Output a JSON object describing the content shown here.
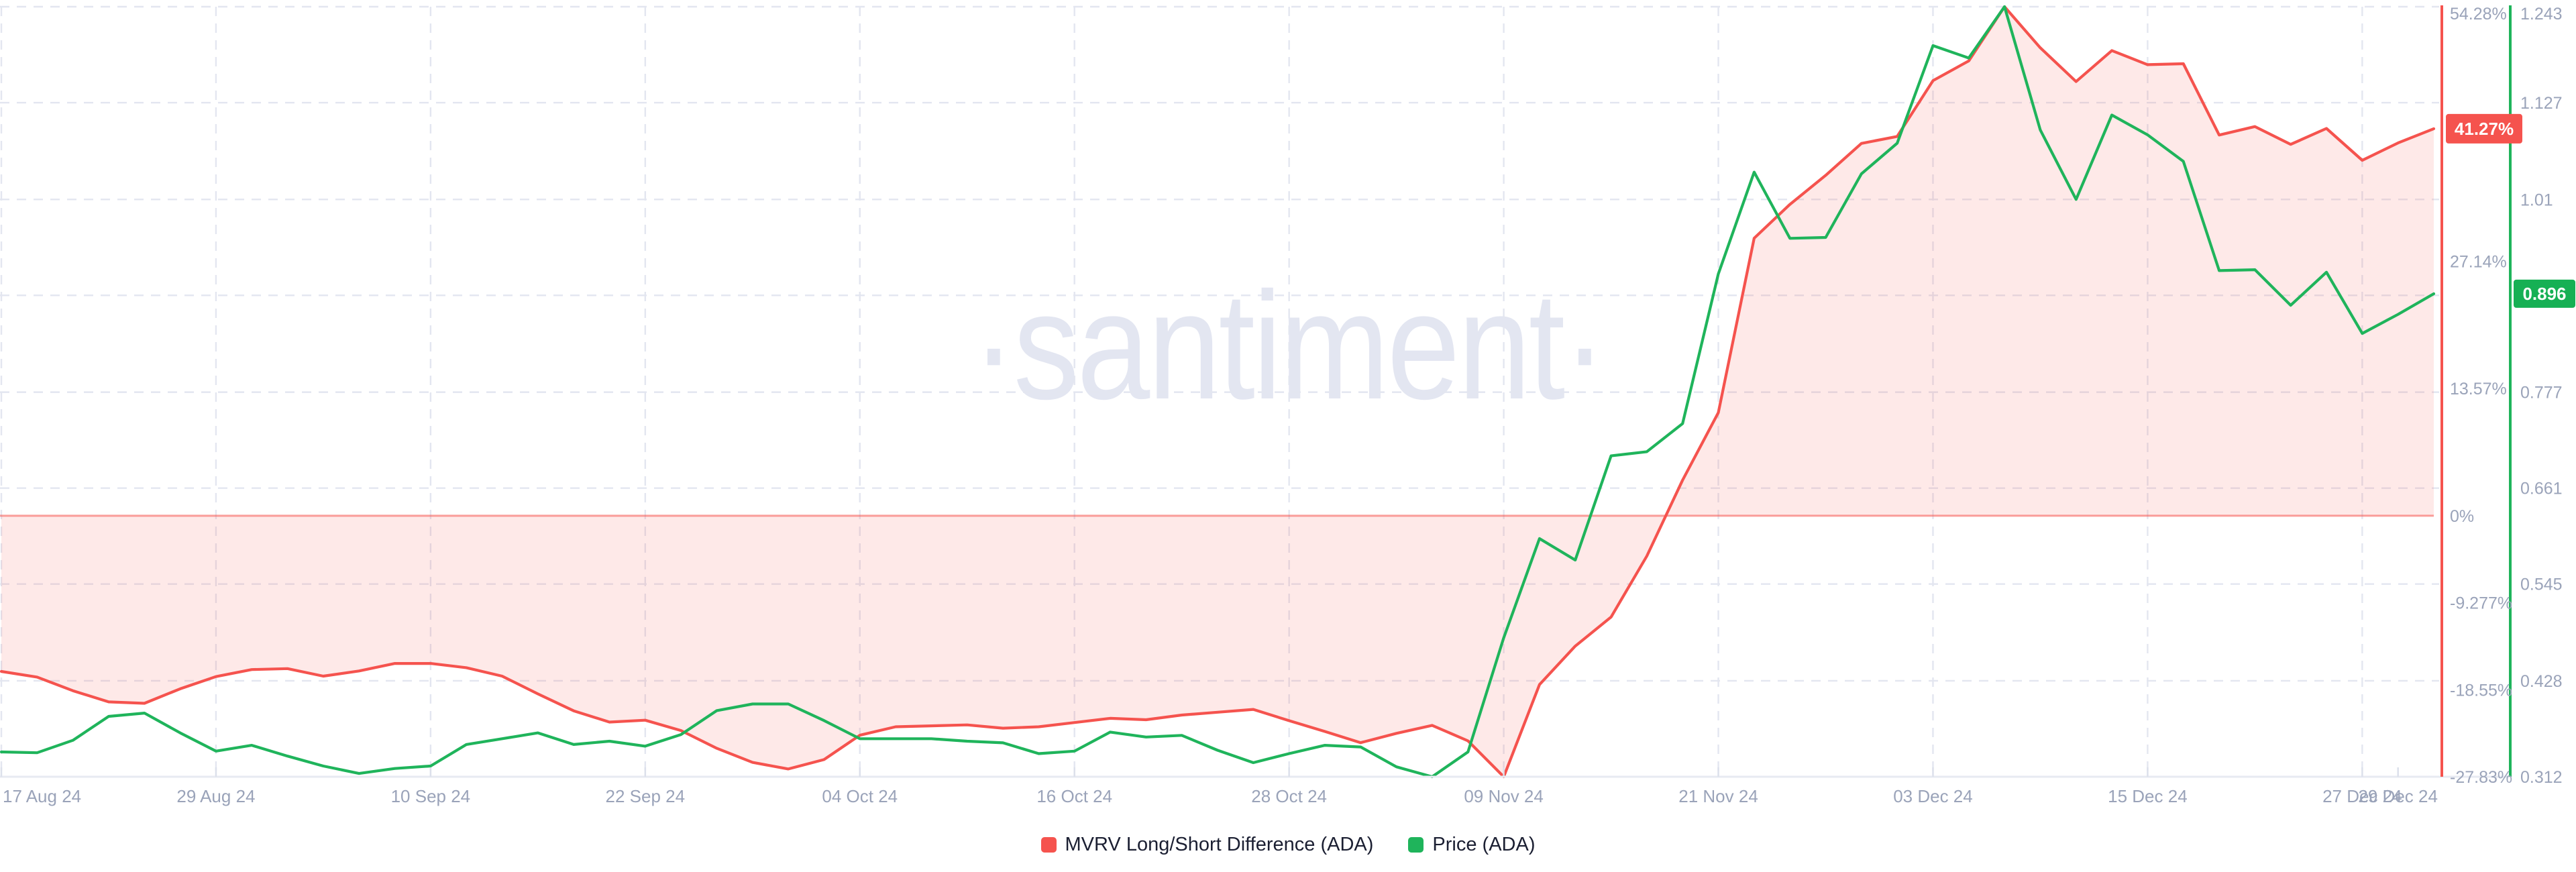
{
  "watermark": "·santiment·",
  "legend": {
    "items": [
      {
        "label": "MVRV Long/Short Difference (ADA)",
        "color": "#F5534E"
      },
      {
        "label": "Price (ADA)",
        "color": "#1FB45B"
      }
    ]
  },
  "colors": {
    "mvrv_line": "#F5534E",
    "mvrv_fill": "rgba(245,83,78,0.13)",
    "zero_line": "rgba(245,83,78,0.55)",
    "price_line": "#1FB45B",
    "mvrv_badge_bg": "#F5534E",
    "price_badge_bg": "#16B054",
    "badge_text": "#FFFFFF",
    "grid_line": "#E3E6F0",
    "x_axis_line": "#E7EAF2",
    "tick_mark": "#DCE0EB",
    "axis_label": "#9AA3B9",
    "legend_text": "#1B1F32",
    "watermark": "#E3E6F1",
    "background": "#FFFFFF"
  },
  "chart_data": {
    "type": "line",
    "title": "",
    "xlabel": "",
    "ylabel_right_1": "MVRV Long/Short Difference (%)",
    "ylabel_right_2": "Price (ADA)",
    "grid": {
      "horizontal": "dashed",
      "vertical": "dashed",
      "legend_position": "bottom-center"
    },
    "x_dates": [
      "2024-08-17",
      "2024-08-19",
      "2024-08-21",
      "2024-08-23",
      "2024-08-25",
      "2024-08-27",
      "2024-08-29",
      "2024-08-31",
      "2024-09-02",
      "2024-09-04",
      "2024-09-06",
      "2024-09-08",
      "2024-09-10",
      "2024-09-12",
      "2024-09-14",
      "2024-09-16",
      "2024-09-18",
      "2024-09-20",
      "2024-09-22",
      "2024-09-24",
      "2024-09-26",
      "2024-09-28",
      "2024-09-30",
      "2024-10-02",
      "2024-10-04",
      "2024-10-06",
      "2024-10-08",
      "2024-10-10",
      "2024-10-12",
      "2024-10-14",
      "2024-10-16",
      "2024-10-18",
      "2024-10-20",
      "2024-10-22",
      "2024-10-24",
      "2024-10-26",
      "2024-10-28",
      "2024-10-30",
      "2024-11-01",
      "2024-11-03",
      "2024-11-05",
      "2024-11-07",
      "2024-11-09",
      "2024-11-11",
      "2024-11-13",
      "2024-11-15",
      "2024-11-17",
      "2024-11-19",
      "2024-11-21",
      "2024-11-23",
      "2024-11-25",
      "2024-11-27",
      "2024-11-29",
      "2024-12-01",
      "2024-12-03",
      "2024-12-05",
      "2024-12-07",
      "2024-12-09",
      "2024-12-11",
      "2024-12-13",
      "2024-12-15",
      "2024-12-17",
      "2024-12-19",
      "2024-12-21",
      "2024-12-23",
      "2024-12-25",
      "2024-12-27",
      "2024-12-29",
      "2024-12-31"
    ],
    "series": [
      {
        "name": "MVRV Long/Short Difference (ADA)",
        "yaxis": "percent",
        "color": "#F5534E",
        "area_fill_to_zero": true,
        "values": [
          -16.6,
          -17.2,
          -18.65,
          -19.85,
          -20.0,
          -18.45,
          -17.15,
          -16.4,
          -16.3,
          -17.1,
          -16.55,
          -15.75,
          -15.75,
          -16.2,
          -17.1,
          -19.0,
          -20.8,
          -22.0,
          -21.8,
          -22.9,
          -24.8,
          -26.3,
          -27.0,
          -26.0,
          -23.4,
          -22.5,
          -22.4,
          -22.3,
          -22.65,
          -22.5,
          -22.05,
          -21.6,
          -21.75,
          -21.25,
          -20.95,
          -20.65,
          -21.85,
          -23.0,
          -24.2,
          -23.2,
          -22.35,
          -24.0,
          -27.83,
          -18.0,
          -13.9,
          -10.8,
          -4.3,
          3.8,
          11.0,
          29.6,
          33.2,
          36.3,
          39.7,
          40.45,
          46.4,
          48.5,
          54.28,
          49.9,
          46.3,
          49.6,
          48.1,
          48.2,
          40.6,
          41.5,
          39.6,
          41.3,
          37.9,
          39.75,
          41.27
        ]
      },
      {
        "name": "Price (ADA)",
        "yaxis": "price",
        "color": "#1FB45B",
        "area_fill_to_zero": false,
        "values": [
          0.342,
          0.341,
          0.356,
          0.385,
          0.389,
          0.365,
          0.343,
          0.35,
          0.337,
          0.325,
          0.316,
          0.322,
          0.325,
          0.351,
          0.358,
          0.365,
          0.351,
          0.355,
          0.349,
          0.363,
          0.392,
          0.4,
          0.4,
          0.38,
          0.358,
          0.358,
          0.358,
          0.355,
          0.353,
          0.34,
          0.343,
          0.366,
          0.36,
          0.362,
          0.344,
          0.329,
          0.34,
          0.35,
          0.348,
          0.324,
          0.312,
          0.342,
          0.48,
          0.6,
          0.574,
          0.7,
          0.705,
          0.739,
          0.92,
          1.043,
          0.963,
          0.964,
          1.041,
          1.078,
          1.196,
          1.181,
          1.243,
          1.094,
          1.01,
          1.112,
          1.088,
          1.056,
          0.924,
          0.925,
          0.882,
          0.922,
          0.848,
          0.871,
          0.896
        ]
      }
    ],
    "percent_axis": {
      "min": -27.83,
      "max": 54.28,
      "ticks": [
        {
          "label": "54.28%",
          "value": 54.28
        },
        {
          "label": "40.71%",
          "value": 40.71,
          "hidden_behind_badge": true
        },
        {
          "label": "27.14%",
          "value": 27.14
        },
        {
          "label": "13.57%",
          "value": 13.57
        },
        {
          "label": "0%",
          "value": 0
        },
        {
          "label": "-9.277%",
          "value": -9.277
        },
        {
          "label": "-18.55%",
          "value": -18.55
        },
        {
          "label": "-27.83%",
          "value": -27.83
        }
      ],
      "current": {
        "label": "41.27%",
        "value": 41.27
      }
    },
    "price_axis": {
      "min": 0.312,
      "max": 1.243,
      "ticks": [
        {
          "label": "1.243",
          "value": 1.243
        },
        {
          "label": "1.127",
          "value": 1.127
        },
        {
          "label": "1.01",
          "value": 1.01
        },
        {
          "label": "0.894",
          "value": 0.894,
          "hidden_behind_badge": true
        },
        {
          "label": "0.777",
          "value": 0.777
        },
        {
          "label": "0.661",
          "value": 0.661
        },
        {
          "label": "0.545",
          "value": 0.545
        },
        {
          "label": "0.428",
          "value": 0.428
        },
        {
          "label": "0.312",
          "value": 0.312
        }
      ],
      "current": {
        "label": "0.896",
        "value": 0.896
      }
    },
    "x_ticks": [
      {
        "label": "17 Aug 24",
        "i": 0
      },
      {
        "label": "29 Aug 24",
        "i": 6
      },
      {
        "label": "10 Sep 24",
        "i": 12
      },
      {
        "label": "22 Sep 24",
        "i": 18
      },
      {
        "label": "04 Oct 24",
        "i": 24
      },
      {
        "label": "16 Oct 24",
        "i": 30
      },
      {
        "label": "28 Oct 24",
        "i": 36
      },
      {
        "label": "09 Nov 24",
        "i": 42
      },
      {
        "label": "21 Nov 24",
        "i": 48
      },
      {
        "label": "03 Dec 24",
        "i": 54
      },
      {
        "label": "15 Dec 24",
        "i": 60
      },
      {
        "label": "27 Dec 24",
        "i": 66
      },
      {
        "label": "29 Dec 24",
        "i": 67
      }
    ]
  }
}
